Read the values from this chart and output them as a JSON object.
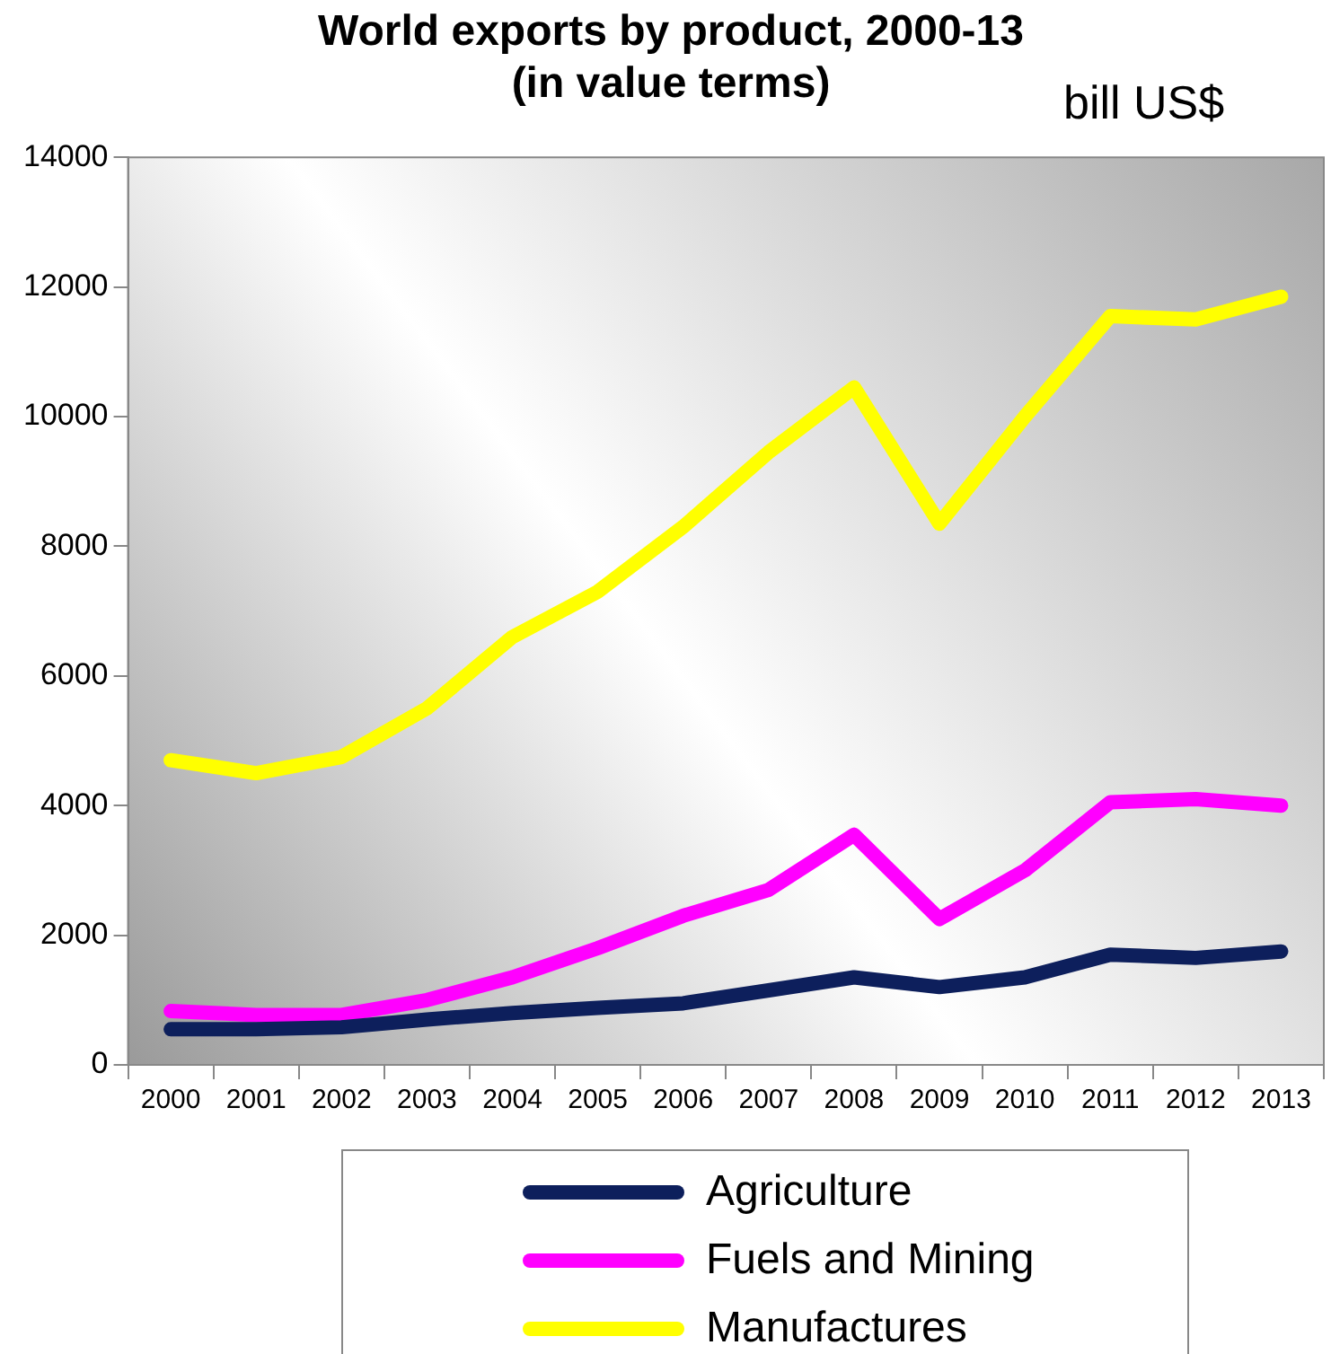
{
  "chart_data": {
    "type": "line",
    "title": "World exports by product, 2000-13\n(in value terms)",
    "annotations": [
      "bill US$"
    ],
    "categories": [
      "2000",
      "2001",
      "2002",
      "2003",
      "2004",
      "2005",
      "2006",
      "2007",
      "2008",
      "2009",
      "2010",
      "2011",
      "2012",
      "2013"
    ],
    "series": [
      {
        "name": "Agriculture",
        "color": "#0d1f5c",
        "values": [
          550,
          550,
          580,
          700,
          800,
          880,
          950,
          1150,
          1350,
          1200,
          1350,
          1700,
          1650,
          1750
        ]
      },
      {
        "name": "Fuels and Mining",
        "color": "#ff00ff",
        "values": [
          830,
          770,
          770,
          1000,
          1350,
          1800,
          2300,
          2700,
          3550,
          2250,
          3000,
          4050,
          4100,
          4000
        ]
      },
      {
        "name": "Manufactures",
        "color": "#ffff00",
        "values": [
          4700,
          4500,
          4750,
          5500,
          6600,
          7300,
          8300,
          9450,
          10450,
          8350,
          10000,
          11550,
          11500,
          11850
        ]
      }
    ],
    "ylim": [
      0,
      14000
    ],
    "yticks": [
      0,
      2000,
      4000,
      6000,
      8000,
      10000,
      12000,
      14000
    ],
    "grid": false,
    "legend": "bottom",
    "marker": "none",
    "line_style": "solid"
  }
}
